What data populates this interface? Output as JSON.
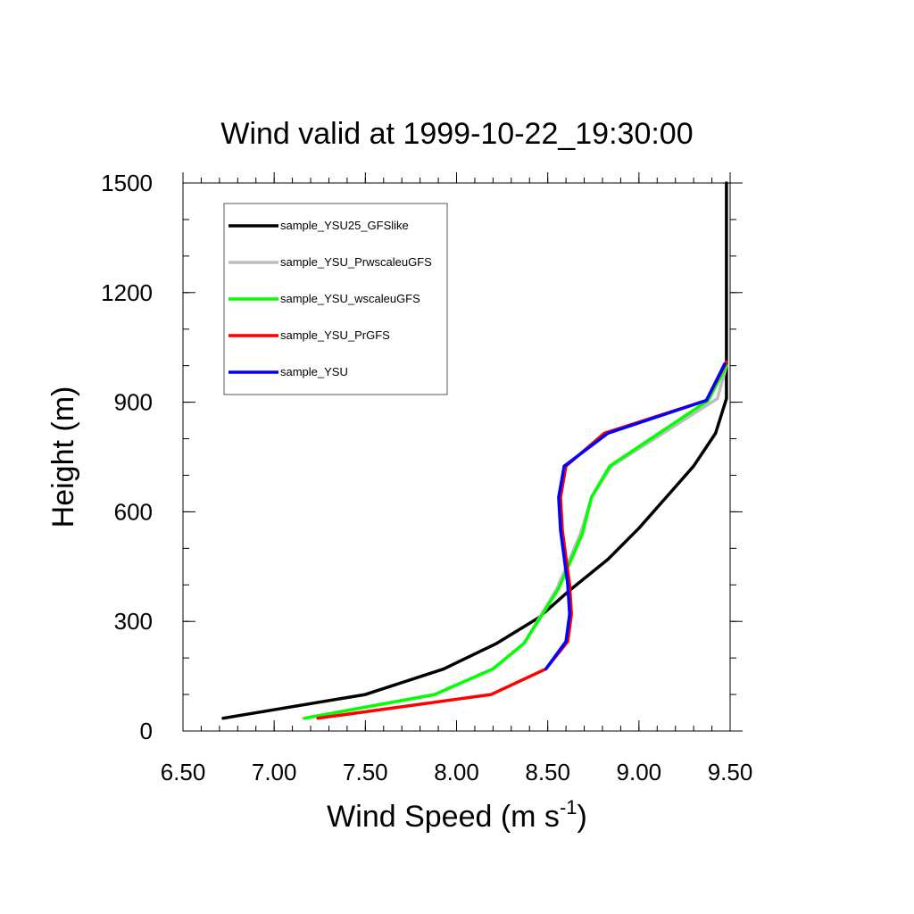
{
  "chart_data": {
    "type": "line",
    "title": "Wind valid at 1999-10-22_19:30:00",
    "xlabel": "Wind Speed (m s",
    "xlabel_sup": "-1",
    "xlabel_end": ")",
    "ylabel": "Height (m)",
    "xlim": [
      6.5,
      9.5
    ],
    "ylim": [
      0,
      1500
    ],
    "x_ticks": [
      "6.50",
      "7.00",
      "7.50",
      "8.00",
      "8.50",
      "9.00",
      "9.50"
    ],
    "y_ticks": [
      "0",
      "300",
      "600",
      "900",
      "1200",
      "1500"
    ],
    "x_minor_step": 0.1,
    "y_minor_step": 100,
    "grid": false,
    "legend_position": "top-left",
    "series": [
      {
        "name": "sample_YSU25_GFSlike",
        "color": "#000000",
        "x": [
          6.72,
          7.5,
          7.93,
          8.22,
          8.45,
          8.62,
          8.83,
          9.0,
          9.15,
          9.3,
          9.42,
          9.48,
          9.48,
          9.48
        ],
        "y": [
          35,
          100,
          170,
          240,
          310,
          385,
          470,
          555,
          640,
          725,
          815,
          910,
          1000,
          1500
        ]
      },
      {
        "name": "sample_YSU_PrwscaleuGFS",
        "color": "#bdbdbd",
        "x": [
          7.16,
          7.88,
          8.2,
          8.37,
          8.55,
          8.68,
          8.74,
          8.85,
          9.43,
          9.48
        ],
        "y": [
          35,
          100,
          170,
          240,
          390,
          540,
          640,
          725,
          910,
          1000
        ]
      },
      {
        "name": "sample_YSU_wscaleuGFS",
        "color": "#00ff00",
        "x": [
          7.17,
          7.88,
          8.2,
          8.37,
          8.56,
          8.69,
          8.74,
          8.84,
          9.38,
          9.48
        ],
        "y": [
          35,
          100,
          170,
          240,
          390,
          540,
          640,
          725,
          905,
          1000
        ]
      },
      {
        "name": "sample_YSU_PrGFS",
        "color": "#ff0000",
        "x": [
          7.24,
          8.19,
          8.49,
          8.61,
          8.63,
          8.62,
          8.58,
          8.57,
          8.6,
          8.81,
          9.37,
          9.48
        ],
        "y": [
          35,
          100,
          170,
          245,
          320,
          400,
          550,
          640,
          725,
          815,
          905,
          1010
        ]
      },
      {
        "name": "sample_YSU",
        "color": "#0000ff",
        "x": [
          8.49,
          8.6,
          8.62,
          8.61,
          8.57,
          8.56,
          8.59,
          8.83,
          9.37,
          9.47
        ],
        "y": [
          170,
          245,
          320,
          400,
          550,
          640,
          725,
          815,
          905,
          1005
        ]
      }
    ]
  }
}
